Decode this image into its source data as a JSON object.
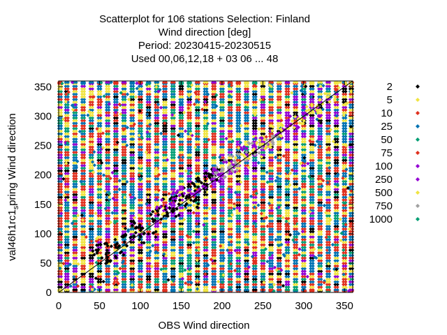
{
  "chart_data": {
    "type": "scatter",
    "title_lines": [
      "Scatterplot for  106 stations Selection: Finland",
      "Wind direction [deg]",
      "Period: 20230415-20230515",
      "Used  00,06,12,18  + 03 06 ... 48"
    ],
    "xlabel": "OBS Wind direction",
    "ylabel_main": "val46h1rc1",
    "ylabel_sub": "s",
    "ylabel_tail": "pring Wind direction",
    "xlim": [
      0,
      360
    ],
    "ylim": [
      0,
      360
    ],
    "xticks": [
      0,
      50,
      100,
      150,
      200,
      250,
      300,
      350
    ],
    "yticks": [
      0,
      50,
      100,
      150,
      200,
      250,
      300,
      350
    ],
    "grid": false,
    "legend_placement": "right",
    "diagonal": true,
    "obs_columns": [
      0,
      10,
      20,
      30,
      40,
      50,
      60,
      70,
      80,
      90,
      100,
      110,
      120,
      130,
      140,
      150,
      160,
      170,
      180,
      190,
      200,
      210,
      220,
      230,
      240,
      250,
      260,
      270,
      280,
      290,
      300,
      310,
      320,
      330,
      340,
      350,
      360
    ],
    "series": [
      {
        "name": "2",
        "color": "#000000"
      },
      {
        "name": "5",
        "color": "#f0e442"
      },
      {
        "name": "10",
        "color": "#e0301e"
      },
      {
        "name": "25",
        "color": "#0072b2"
      },
      {
        "name": "50",
        "color": "#009e73"
      },
      {
        "name": "75",
        "color": "#e0301e"
      },
      {
        "name": "100",
        "color": "#9400d3"
      },
      {
        "name": "250",
        "color": "#9400d3"
      },
      {
        "name": "500",
        "color": "#f0e442"
      },
      {
        "name": "750",
        "color": "#a0a0a0"
      },
      {
        "name": "1000",
        "color": "#009e73"
      }
    ],
    "diagonal_clusters": [
      {
        "series": "2",
        "x": [
          50,
          60,
          70,
          80,
          90,
          100,
          110,
          120,
          130,
          140,
          150,
          160,
          170,
          180,
          190
        ],
        "y": [
          75,
          60,
          70,
          90,
          100,
          110,
          95,
          130,
          150,
          140,
          160,
          155,
          180,
          190,
          200
        ]
      },
      {
        "series": "100",
        "x": [
          130,
          150,
          170,
          190,
          210,
          230,
          250,
          270,
          290,
          310
        ],
        "y": [
          150,
          170,
          175,
          200,
          215,
          240,
          255,
          270,
          290,
          310
        ]
      },
      {
        "series": "750",
        "x": [
          200,
          210,
          220,
          240,
          260
        ],
        "y": [
          205,
          215,
          225,
          245,
          260
        ]
      },
      {
        "series": "500",
        "x": [
          230,
          250,
          270,
          290,
          310,
          330,
          350
        ],
        "y": [
          235,
          255,
          275,
          290,
          315,
          330,
          350
        ]
      }
    ]
  }
}
